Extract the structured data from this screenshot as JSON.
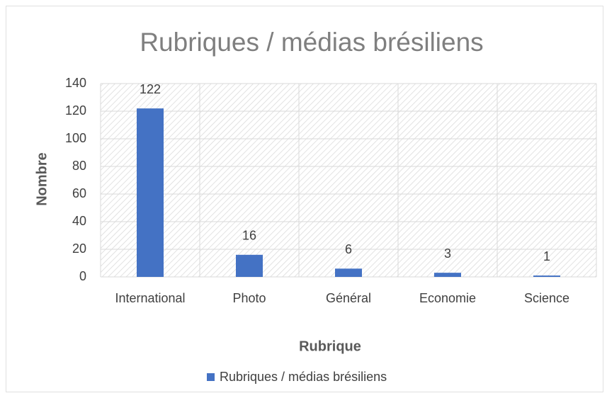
{
  "chart_data": {
    "type": "bar",
    "title": "Rubriques / médias brésiliens",
    "x_label": "Rubrique",
    "y_label": "Nombre",
    "categories": [
      "International",
      "Photo",
      "Général",
      "Economie",
      "Science"
    ],
    "series": [
      {
        "name": "Rubriques / médias brésiliens",
        "color": "#4472c4",
        "values": [
          122,
          16,
          6,
          3,
          1
        ]
      }
    ],
    "ylim": [
      0,
      140
    ],
    "yticks": [
      0,
      20,
      40,
      60,
      80,
      100,
      120,
      140
    ],
    "grid": true,
    "legend": "bottom"
  }
}
